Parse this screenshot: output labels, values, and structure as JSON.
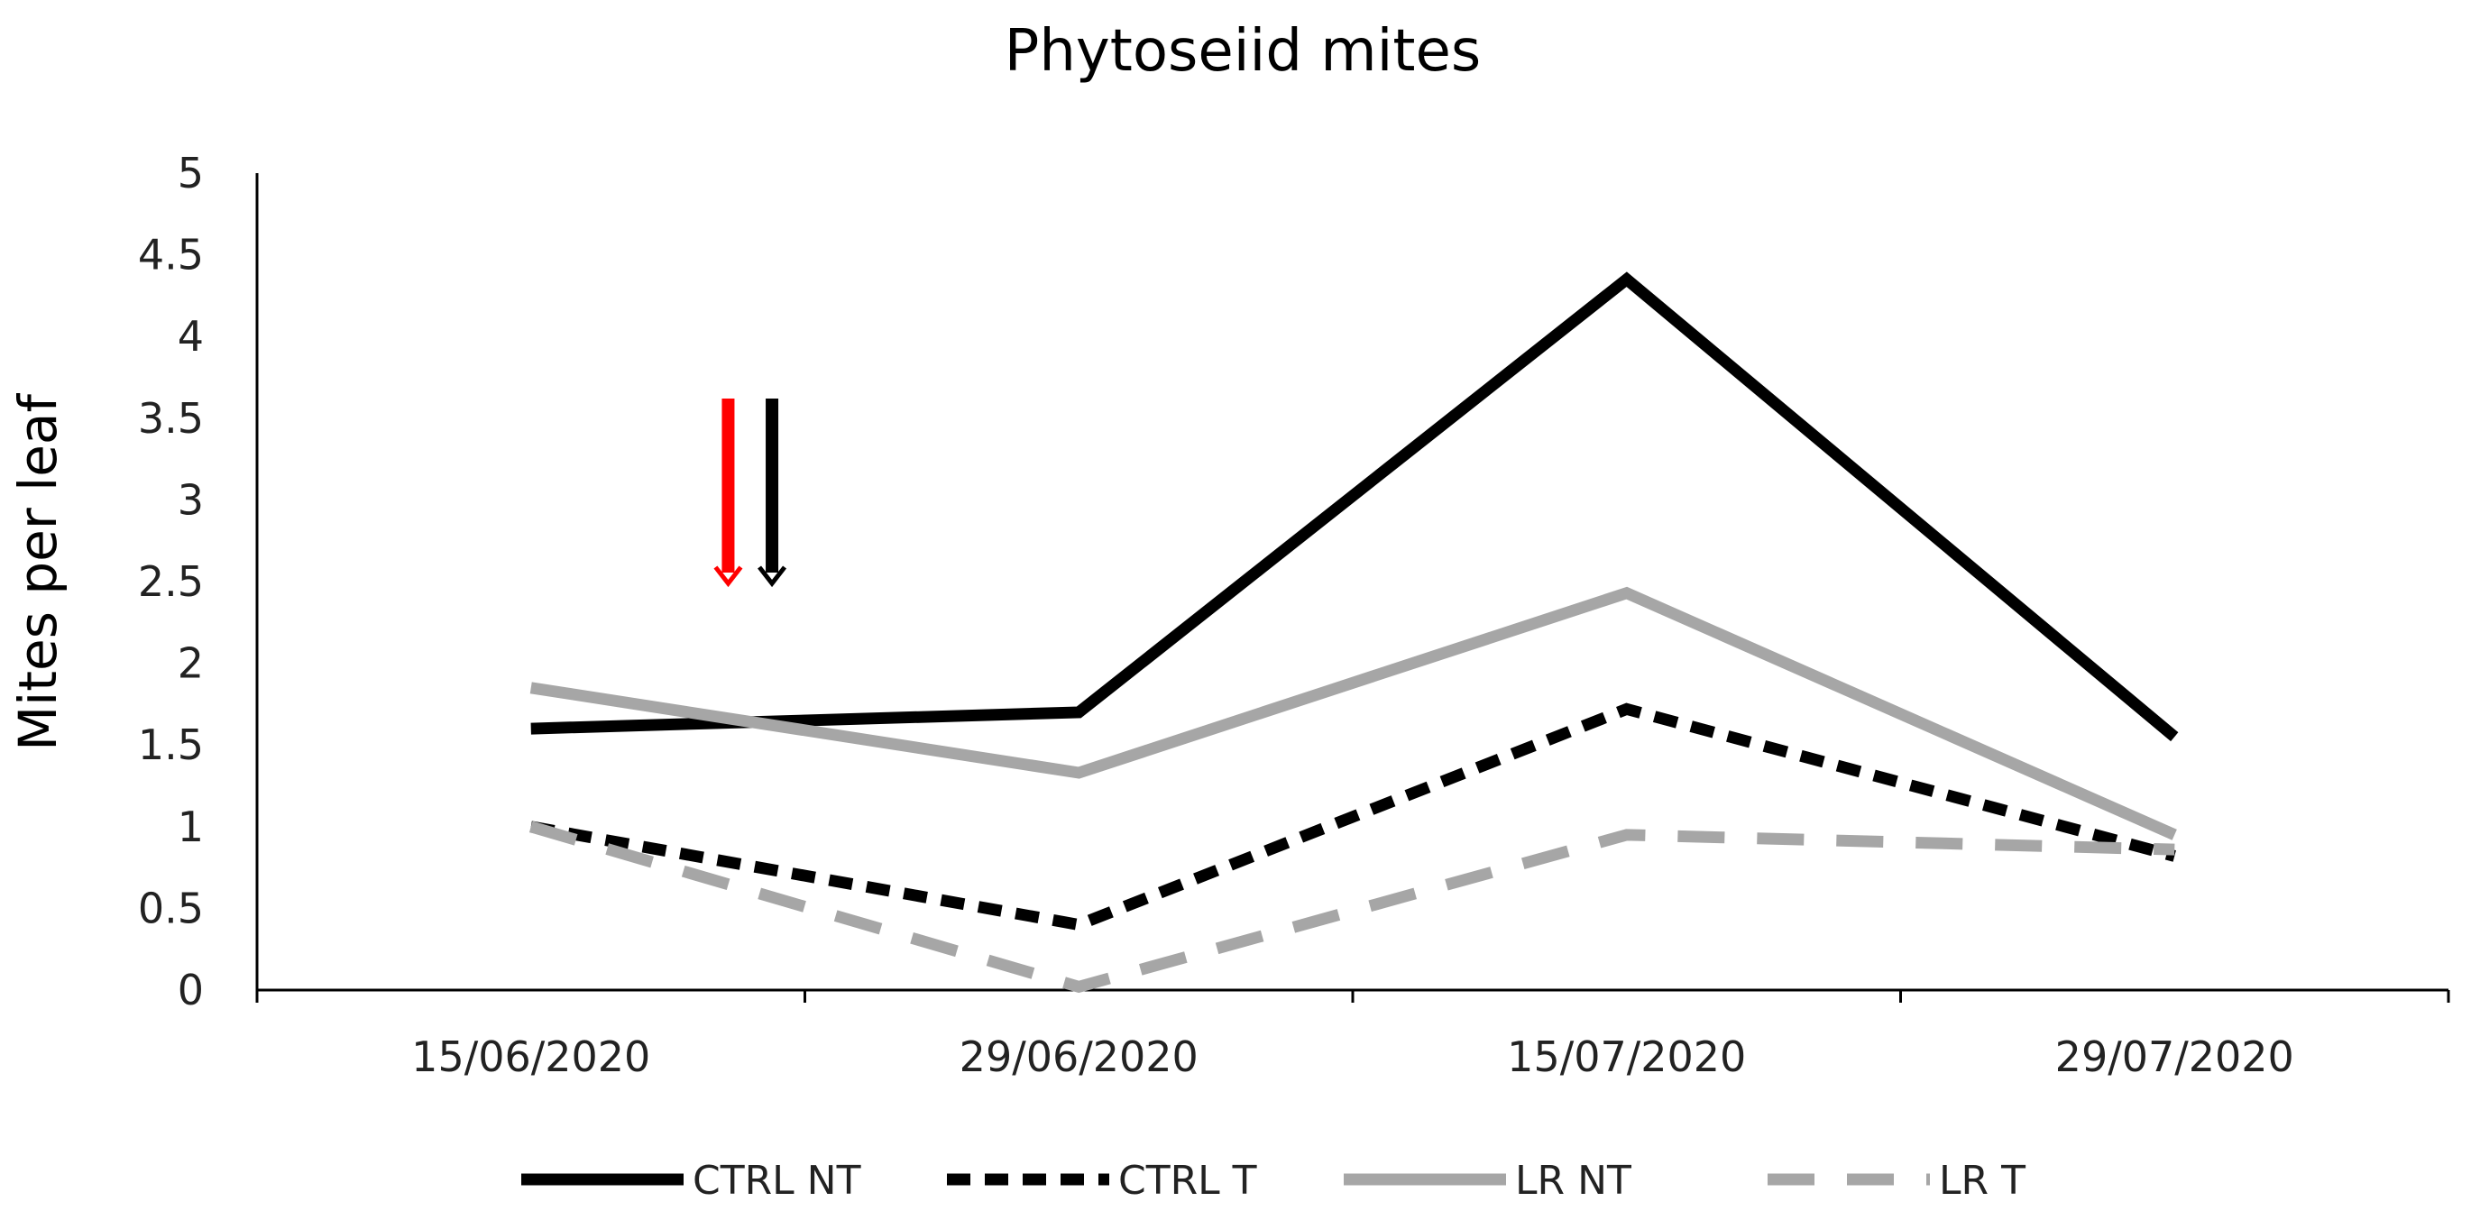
{
  "chart_data": {
    "type": "line",
    "title": "Phytoseiid mites",
    "xlabel": "",
    "ylabel": "Mites  per leaf",
    "categories": [
      "15/06/2020",
      "29/06/2020",
      "15/07/2020",
      "29/07/2020"
    ],
    "ylim": [
      0,
      5
    ],
    "yticks": [
      0,
      0.5,
      1,
      1.5,
      2,
      2.5,
      3,
      3.5,
      4,
      4.5,
      5
    ],
    "ytick_labels": [
      "0",
      "0.5",
      "1",
      "1.5",
      "2",
      "2.5",
      "3",
      "3.5",
      "4",
      "4.5",
      "5"
    ],
    "grid": false,
    "legend_position": "bottom",
    "series": [
      {
        "name": "CTRL NT",
        "values": [
          1.6,
          1.7,
          4.35,
          1.55
        ],
        "color": "#000000",
        "style": "solid"
      },
      {
        "name": "CTRL T",
        "values": [
          1.0,
          0.4,
          1.72,
          0.82
        ],
        "color": "#000000",
        "style": "dashed"
      },
      {
        "name": "LR NT",
        "values": [
          1.85,
          1.33,
          2.43,
          0.95
        ],
        "color": "#a6a6a6",
        "style": "solid"
      },
      {
        "name": "LR T",
        "values": [
          1.0,
          0.02,
          0.95,
          0.86
        ],
        "color": "#a6a6a6",
        "style": "dashed"
      }
    ],
    "annotations": [
      {
        "type": "arrow",
        "direction": "down",
        "color": "#ff0000",
        "from_y": 3.62,
        "to_y": 2.5,
        "x_between": [
          0,
          1
        ],
        "x_frac": 0.36
      },
      {
        "type": "arrow",
        "direction": "down",
        "color": "#000000",
        "from_y": 3.62,
        "to_y": 2.5,
        "x_between": [
          0,
          1
        ],
        "x_frac": 0.44
      }
    ]
  }
}
